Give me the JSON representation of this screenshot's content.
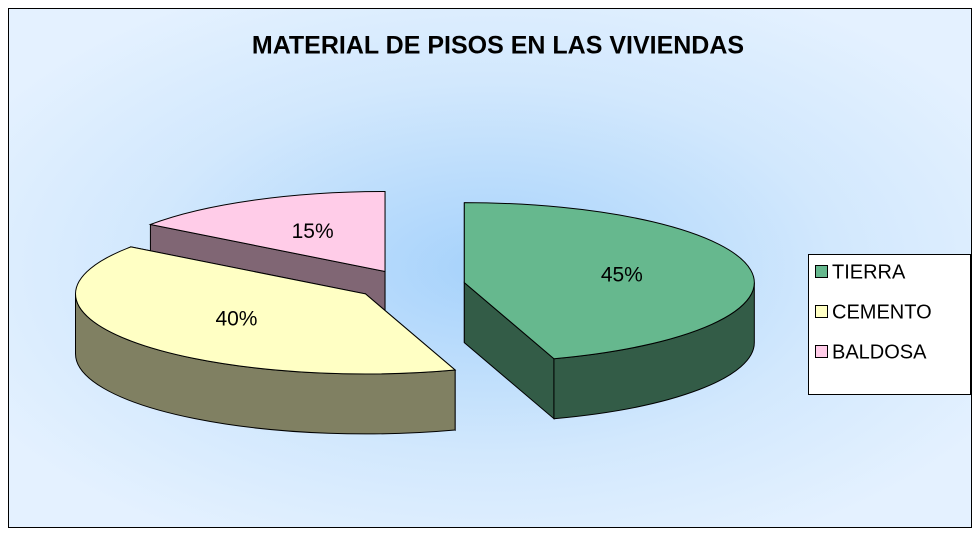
{
  "chart_data": {
    "type": "pie3d",
    "title": "MATERIAL DE PISOS EN LAS VIVIENDAS",
    "categories": [
      "TIERRA",
      "CEMENTO",
      "BALDOSA"
    ],
    "values": [
      45,
      40,
      15
    ],
    "value_labels": [
      "45%",
      "40%",
      "15%"
    ],
    "colors": [
      "#66b88e",
      "#ffffc4",
      "#ffcce8"
    ],
    "legend": "right"
  }
}
